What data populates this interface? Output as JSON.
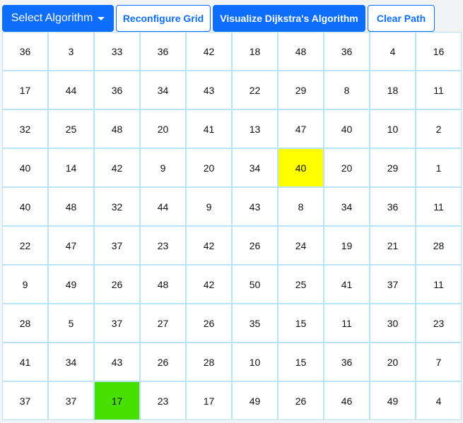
{
  "toolbar": {
    "select_label": "Select Algorithm",
    "reconfigure_label": "Reconfigure Grid",
    "visualize_label": "Visualize Dijkstra's Algorithm",
    "clear_label": "Clear Path"
  },
  "colors": {
    "primary": "#0d6efd",
    "cell_border": "#b9e4f7",
    "start_node": "#47e000",
    "end_node": "#ffff00"
  },
  "grid": {
    "rows": [
      [
        36,
        3,
        33,
        36,
        42,
        18,
        48,
        36,
        4,
        16
      ],
      [
        17,
        44,
        36,
        34,
        43,
        22,
        29,
        8,
        18,
        11
      ],
      [
        32,
        25,
        48,
        20,
        41,
        13,
        47,
        40,
        10,
        2
      ],
      [
        40,
        14,
        42,
        9,
        20,
        34,
        40,
        20,
        29,
        1
      ],
      [
        40,
        48,
        32,
        44,
        9,
        43,
        8,
        34,
        36,
        11
      ],
      [
        22,
        47,
        37,
        23,
        42,
        26,
        24,
        19,
        21,
        28
      ],
      [
        9,
        49,
        26,
        48,
        42,
        50,
        25,
        41,
        37,
        11
      ],
      [
        28,
        5,
        37,
        27,
        26,
        35,
        15,
        11,
        30,
        23
      ],
      [
        41,
        34,
        43,
        26,
        28,
        10,
        15,
        36,
        20,
        7
      ],
      [
        37,
        37,
        17,
        23,
        17,
        49,
        26,
        46,
        49,
        4
      ]
    ],
    "start_node": {
      "row": 9,
      "col": 2
    },
    "end_node": {
      "row": 3,
      "col": 6
    }
  }
}
